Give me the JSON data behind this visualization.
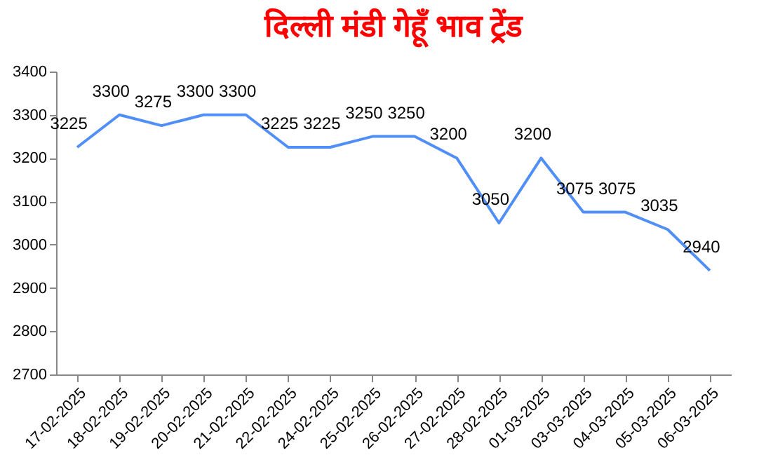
{
  "chart_data": {
    "type": "line",
    "title": "दिल्ली मंडी गेहूँ भाव ट्रेंड",
    "categories": [
      "17-02-2025",
      "18-02-2025",
      "19-02-2025",
      "20-02-2025",
      "21-02-2025",
      "22-02-2025",
      "24-02-2025",
      "25-02-2025",
      "26-02-2025",
      "27-02-2025",
      "28-02-2025",
      "01-03-2025",
      "03-03-2025",
      "04-03-2025",
      "05-03-2025",
      "06-03-2025"
    ],
    "series": [
      {
        "color": "#4f8ff7",
        "values": [
          3225,
          3300,
          3275,
          3300,
          3300,
          3225,
          3225,
          3250,
          3250,
          3200,
          3050,
          3200,
          3075,
          3075,
          3035,
          2940
        ]
      }
    ],
    "ylim": [
      2700,
      3400
    ],
    "yticks": [
      2700,
      2800,
      2900,
      3000,
      3100,
      3200,
      3300,
      3400
    ],
    "data_labels": true,
    "grid": false,
    "legend": false,
    "marker": "none",
    "line_style": "solid"
  }
}
